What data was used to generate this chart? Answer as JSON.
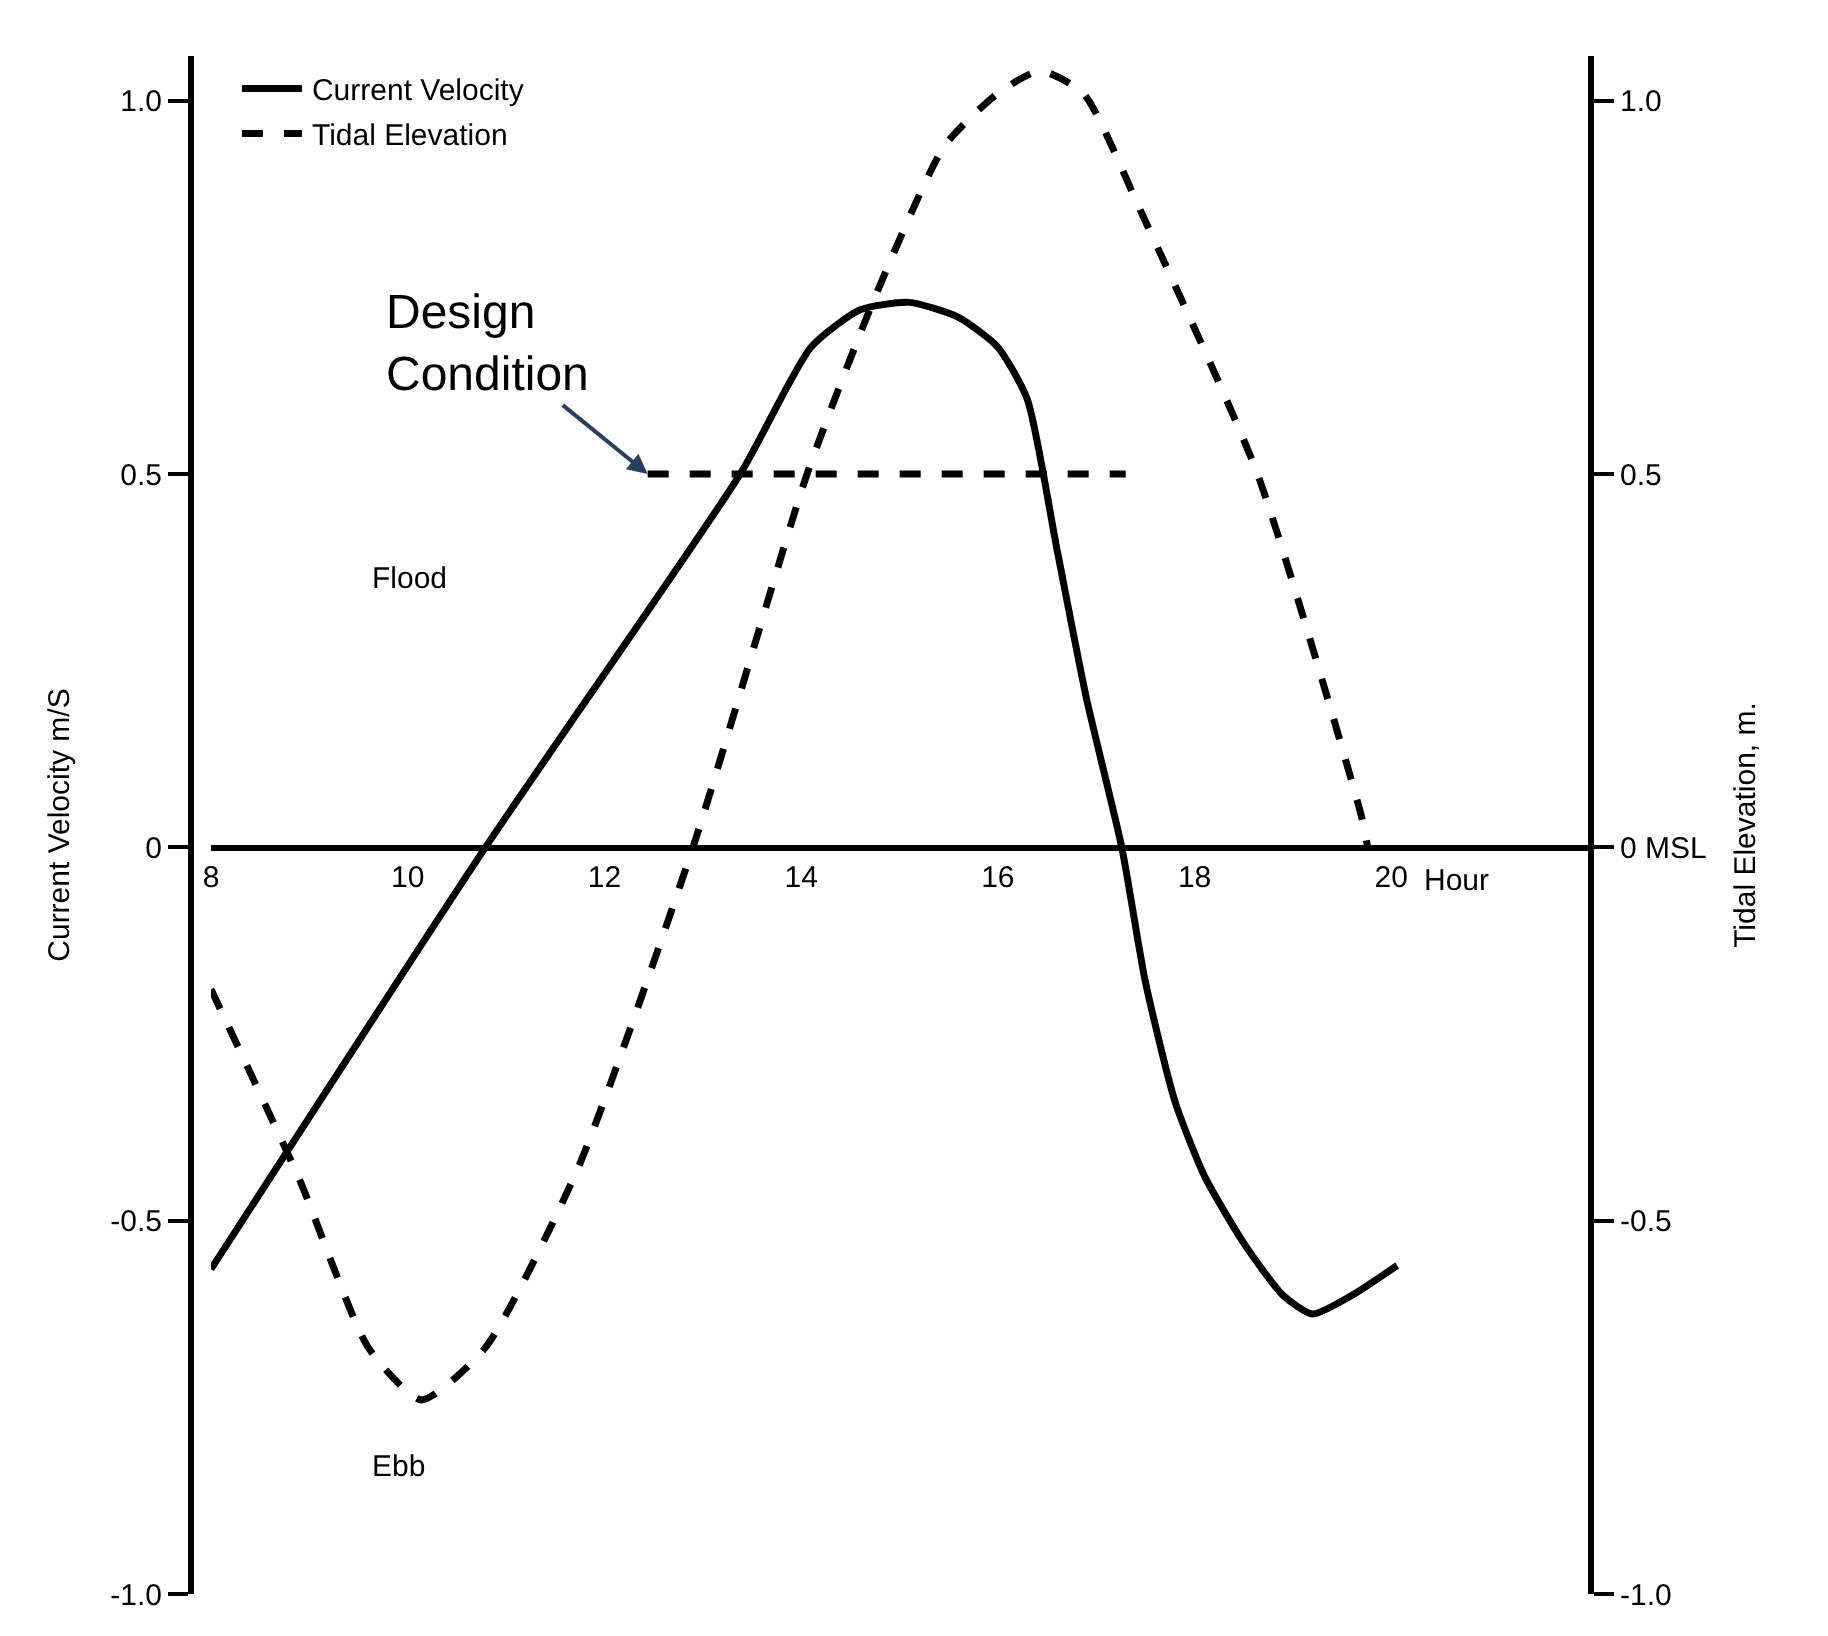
{
  "chart_data": {
    "type": "line",
    "xlabel": "Hour",
    "ylabel": "Current Velocity m/S",
    "y2label": "Tidal Elevation, m.",
    "xlim": [
      8,
      22
    ],
    "xticks": [
      8,
      10,
      12,
      14,
      16,
      18,
      20
    ],
    "ylim": [
      -1,
      1.06
    ],
    "yticks": [
      {
        "value": -1,
        "label": "-1.0"
      },
      {
        "value": -0.5,
        "label": "-0.5"
      },
      0,
      {
        "value": 0.5,
        "label": "0.5"
      },
      {
        "value": 1,
        "label": "1.0"
      }
    ],
    "y2lim": [
      -1,
      1.06
    ],
    "y2ticks": [
      {
        "value": -1,
        "label": "-1.0"
      },
      {
        "value": -0.5,
        "label": "-0.5"
      },
      {
        "value": 0,
        "label": "0 MSL"
      },
      {
        "value": 0.5,
        "label": "0.5"
      },
      {
        "value": 1,
        "label": "1.0"
      }
    ],
    "grid": false,
    "legend": "top left",
    "marker": "none",
    "series": [
      {
        "name": "Current Velocity",
        "color": "#000000",
        "line_style": "solid",
        "x": [
          8,
          10.79,
          13.38,
          14.1,
          14.6,
          15.1,
          15.6,
          16.0,
          16.3,
          16.6,
          16.9,
          17.26,
          17.5,
          17.8,
          18.1,
          18.5,
          18.9,
          19.2,
          19.6,
          20.06
        ],
        "values": [
          -0.565,
          0,
          0.5,
          0.67,
          0.72,
          0.73,
          0.71,
          0.67,
          0.6,
          0.4,
          0.2,
          0,
          -0.18,
          -0.34,
          -0.44,
          -0.53,
          -0.6,
          -0.625,
          -0.6,
          -0.56
        ]
      },
      {
        "name": "Tidal Elevation",
        "color": "#000000",
        "line_style": "dashed",
        "axis": "y2",
        "x": [
          8,
          8.9,
          9.6,
          10.14,
          10.79,
          11.73,
          12.9,
          14.06,
          14.76,
          15.46,
          16.0,
          16.43,
          16.87,
          17.46,
          18.64,
          19.7,
          19.76
        ],
        "values": [
          -0.19,
          -0.445,
          -0.67,
          -0.74,
          -0.67,
          -0.43,
          0,
          0.5,
          0.74,
          0.94,
          1.01,
          1.04,
          1.01,
          0.85,
          0.5,
          0.04,
          0
        ]
      },
      {
        "color": "#000000",
        "line_style": "dashed",
        "x": [
          12.44,
          17.3
        ],
        "values": [
          0.5,
          0.5
        ]
      }
    ],
    "annotations": [
      {
        "text": "Design Condition",
        "x": 12.44,
        "y": 0.5
      },
      "Flood",
      "Ebb"
    ]
  }
}
